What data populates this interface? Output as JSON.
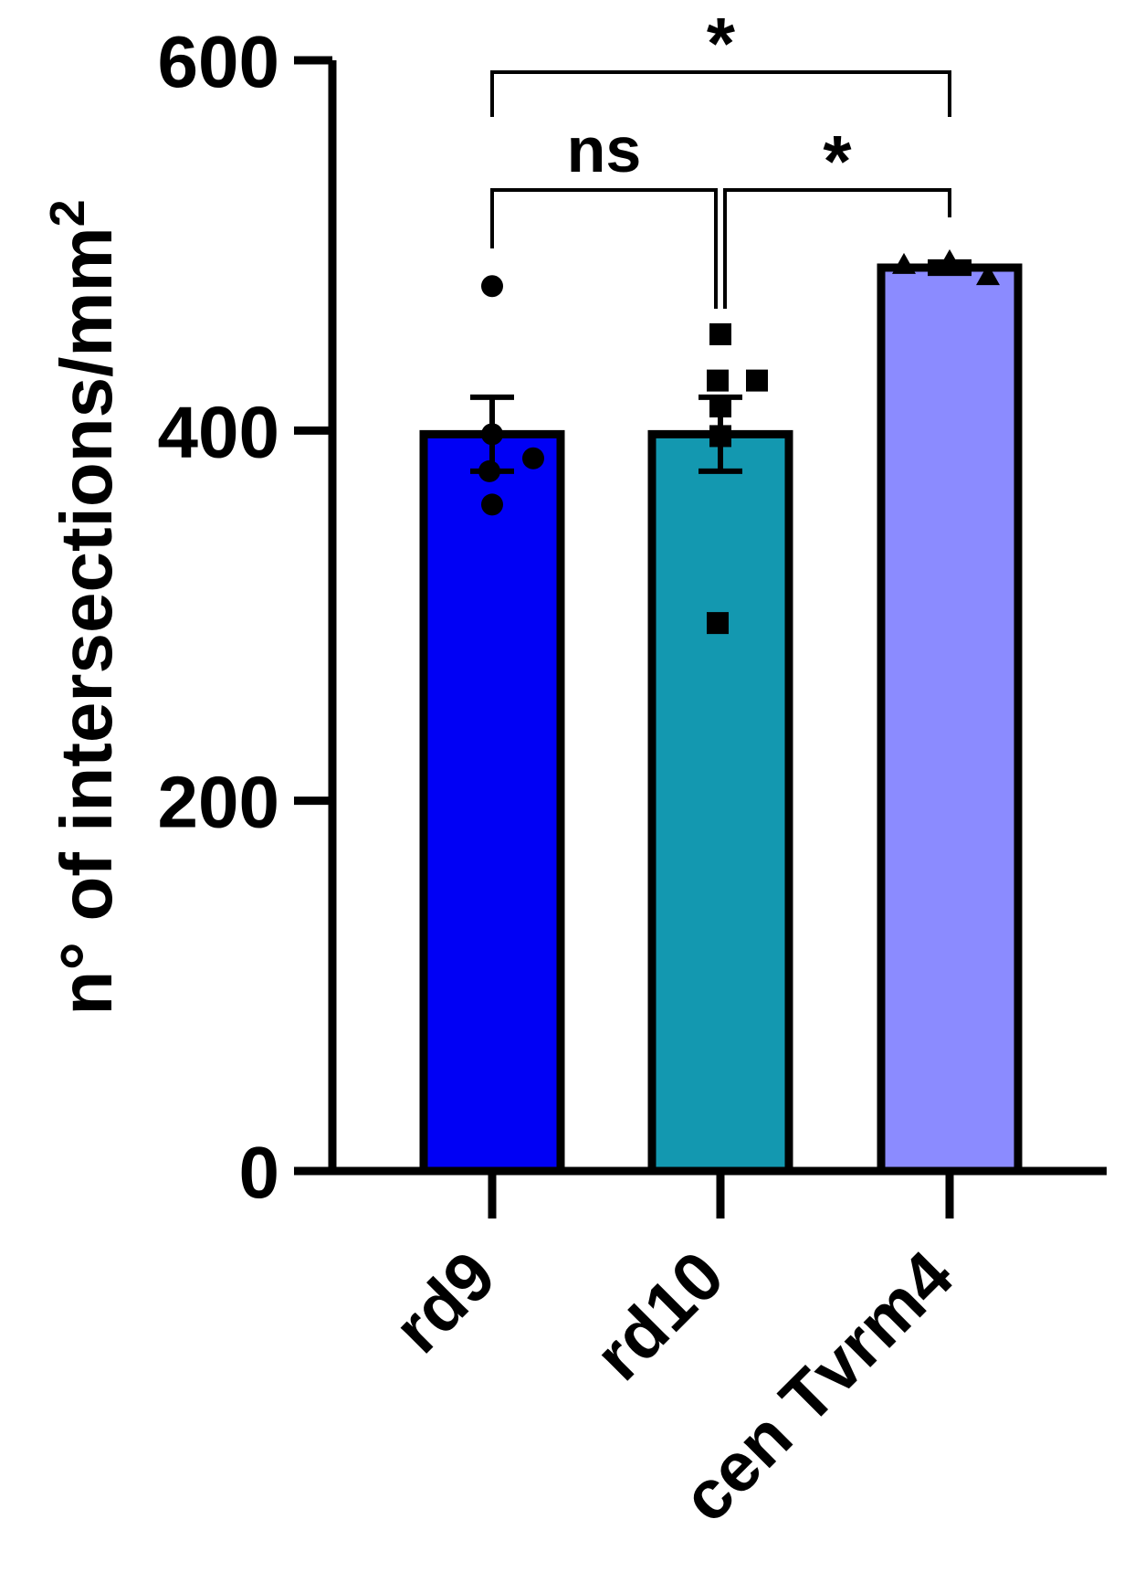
{
  "chart_data": {
    "type": "bar",
    "ylabel": "n° of intersections/mm",
    "ylabel_superscript": "2",
    "ylim": [
      0,
      600
    ],
    "yticks": [
      0,
      200,
      400,
      600
    ],
    "grid": false,
    "categories": [
      "rd9",
      "rd10",
      "cen Tvrm4"
    ],
    "values": [
      398,
      398,
      488
    ],
    "sem": [
      20,
      20,
      3
    ],
    "colors": [
      "#0000f5",
      "#1398b0",
      "#8b8bff"
    ],
    "markers": [
      "circle",
      "square",
      "triangle"
    ],
    "points": [
      [
        478,
        398,
        385,
        378,
        360
      ],
      [
        452,
        427,
        427,
        413,
        397,
        296
      ],
      [
        492,
        490,
        484
      ]
    ],
    "comparisons": [
      {
        "from": 0,
        "to": 2,
        "label": "*"
      },
      {
        "from": 0,
        "to": 1,
        "label": "ns"
      },
      {
        "from": 1,
        "to": 2,
        "label": "*"
      }
    ]
  }
}
